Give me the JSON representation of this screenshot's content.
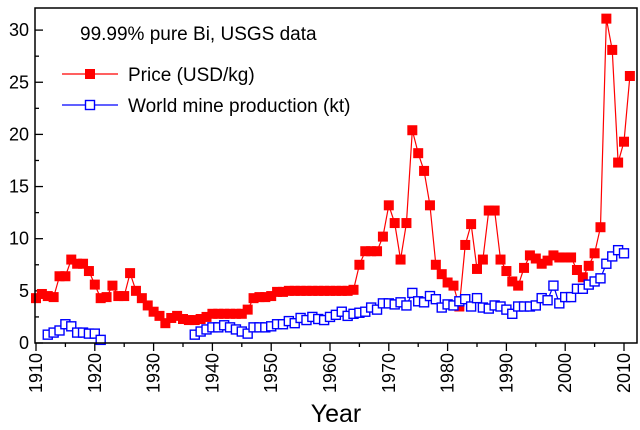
{
  "chart_data": {
    "type": "line",
    "title": "",
    "annotation": "99.99% pure Bi, USGS data",
    "xlabel": "Year",
    "ylabel": "",
    "xlim": [
      1910,
      2012
    ],
    "ylim": [
      0,
      32
    ],
    "xticks": [
      "1910",
      "1920",
      "1930",
      "1940",
      "1950",
      "1960",
      "1970",
      "1980",
      "1990",
      "2000",
      "2010"
    ],
    "yticks": [
      "0",
      "5",
      "10",
      "15",
      "20",
      "25",
      "30"
    ],
    "grid": false,
    "legend_position": "top-left",
    "series": [
      {
        "name": "Price (USD/kg)",
        "color": "#ff0000",
        "marker": "filled-square",
        "x": [
          1910,
          1911,
          1912,
          1913,
          1914,
          1915,
          1916,
          1917,
          1918,
          1919,
          1920,
          1921,
          1922,
          1923,
          1924,
          1925,
          1926,
          1927,
          1928,
          1929,
          1930,
          1931,
          1932,
          1933,
          1934,
          1935,
          1936,
          1937,
          1938,
          1939,
          1940,
          1941,
          1942,
          1943,
          1944,
          1945,
          1946,
          1947,
          1948,
          1949,
          1950,
          1951,
          1952,
          1953,
          1954,
          1955,
          1956,
          1957,
          1958,
          1959,
          1960,
          1961,
          1962,
          1963,
          1964,
          1965,
          1966,
          1967,
          1968,
          1969,
          1970,
          1971,
          1972,
          1973,
          1974,
          1975,
          1976,
          1977,
          1978,
          1979,
          1980,
          1981,
          1982,
          1983,
          1984,
          1985,
          1986,
          1987,
          1988,
          1989,
          1990,
          1991,
          1992,
          1993,
          1994,
          1995,
          1996,
          1997,
          1998,
          1999,
          2000,
          2001,
          2002,
          2003,
          2004,
          2005,
          2006,
          2007,
          2008,
          2009,
          2010,
          2011
        ],
        "y": [
          4.3,
          4.7,
          4.5,
          4.4,
          6.4,
          6.4,
          8.0,
          7.6,
          7.6,
          6.9,
          5.6,
          4.3,
          4.4,
          5.5,
          4.5,
          4.5,
          6.7,
          5.0,
          4.3,
          3.6,
          3.0,
          2.6,
          1.9,
          2.4,
          2.6,
          2.3,
          2.2,
          2.2,
          2.3,
          2.5,
          2.8,
          2.8,
          2.8,
          2.8,
          2.8,
          2.8,
          3.2,
          4.3,
          4.4,
          4.4,
          4.5,
          4.9,
          4.9,
          5.0,
          5.0,
          5.0,
          5.0,
          5.0,
          5.0,
          5.0,
          5.0,
          5.0,
          5.0,
          5.0,
          5.1,
          7.5,
          8.8,
          8.8,
          8.8,
          10.2,
          13.2,
          11.5,
          8.0,
          11.5,
          20.4,
          18.2,
          16.5,
          13.2,
          7.5,
          6.6,
          5.8,
          5.5,
          3.5,
          9.4,
          11.4,
          7.1,
          8.0,
          12.7,
          12.7,
          8.0,
          6.9,
          5.9,
          5.5,
          7.2,
          8.4,
          8.1,
          7.6,
          7.9,
          8.4,
          8.2,
          8.2,
          8.2,
          7.0,
          6.3,
          7.4,
          8.6,
          11.1,
          31.1,
          28.1,
          17.3,
          19.3,
          25.6
        ]
      },
      {
        "name": "World mine production (kt)",
        "color": "#0000ff",
        "marker": "open-square",
        "x": [
          1912,
          1913,
          1914,
          1915,
          1916,
          1917,
          1918,
          1919,
          1920,
          1921,
          1937,
          1938,
          1939,
          1940,
          1941,
          1942,
          1943,
          1944,
          1945,
          1946,
          1947,
          1948,
          1949,
          1950,
          1951,
          1952,
          1953,
          1954,
          1955,
          1956,
          1957,
          1958,
          1959,
          1960,
          1961,
          1962,
          1963,
          1964,
          1965,
          1966,
          1967,
          1968,
          1969,
          1970,
          1971,
          1972,
          1973,
          1974,
          1975,
          1976,
          1977,
          1978,
          1979,
          1980,
          1981,
          1982,
          1983,
          1984,
          1985,
          1986,
          1987,
          1988,
          1989,
          1990,
          1991,
          1992,
          1993,
          1994,
          1995,
          1996,
          1997,
          1998,
          1999,
          2000,
          2001,
          2002,
          2003,
          2004,
          2005,
          2006,
          2007,
          2008,
          2009,
          2010
        ],
        "y": [
          0.8,
          1.0,
          1.2,
          1.8,
          1.6,
          1.0,
          1.0,
          0.9,
          0.9,
          0.3,
          0.8,
          1.1,
          1.3,
          1.5,
          1.5,
          1.7,
          1.5,
          1.3,
          1.1,
          0.9,
          1.5,
          1.5,
          1.5,
          1.6,
          1.8,
          1.8,
          2.1,
          1.9,
          2.4,
          2.2,
          2.5,
          2.3,
          2.2,
          2.5,
          2.7,
          3.0,
          2.6,
          2.8,
          2.9,
          3.0,
          3.4,
          3.2,
          3.8,
          3.8,
          3.7,
          3.9,
          3.6,
          4.8,
          4.0,
          3.9,
          4.5,
          4.2,
          3.4,
          3.7,
          3.6,
          4.0,
          4.2,
          3.5,
          4.3,
          3.4,
          3.3,
          3.6,
          3.5,
          3.2,
          2.8,
          3.5,
          3.5,
          3.5,
          3.6,
          4.3,
          4.1,
          5.5,
          3.8,
          4.4,
          4.4,
          5.2,
          5.2,
          5.6,
          5.9,
          6.2,
          7.6,
          8.3,
          8.9,
          8.6
        ]
      }
    ]
  }
}
